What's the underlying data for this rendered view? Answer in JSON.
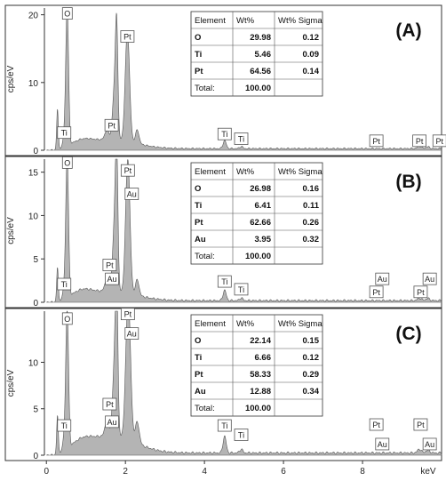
{
  "chart_data": {
    "type": "area",
    "x_unit": "keV",
    "ylabel": "cps/eV",
    "x_ticks": [
      "0",
      "2",
      "4",
      "6",
      "8"
    ],
    "xlim": [
      -0.05,
      10.0
    ],
    "fill_color": "#b4b4b4",
    "line_color": "#555555",
    "table_headers": [
      "Element",
      "Wt%",
      "Wt% Sigma"
    ],
    "total_label": "Total:",
    "panels": [
      {
        "label": "(A)",
        "ylim": [
          0,
          21
        ],
        "y_ticks": [
          0,
          10,
          20
        ],
        "peaks": [
          {
            "x": 0.28,
            "y": 5.8,
            "w": 0.02
          },
          {
            "x": 0.45,
            "y": 1.5,
            "w": 0.03
          },
          {
            "x": 0.525,
            "y": 20.8,
            "w": 0.035
          },
          {
            "x": 1.53,
            "y": 1.4,
            "w": 0.05
          },
          {
            "x": 1.73,
            "y": 8.2,
            "w": 0.05
          },
          {
            "x": 1.78,
            "y": 13.5,
            "w": 0.03
          },
          {
            "x": 2.05,
            "y": 16.3,
            "w": 0.055
          },
          {
            "x": 2.3,
            "y": 2.0,
            "w": 0.045
          },
          {
            "x": 4.51,
            "y": 1.2,
            "w": 0.04
          },
          {
            "x": 4.93,
            "y": 0.3,
            "w": 0.04
          },
          {
            "x": 9.44,
            "y": 0.4,
            "w": 0.05
          },
          {
            "x": 9.65,
            "y": 0.25,
            "w": 0.05
          }
        ],
        "background": {
          "mid": 1.6,
          "tail": 0.25
        },
        "peak_labels": [
          {
            "text": "O",
            "x": 0.53,
            "y": 20.2
          },
          {
            "text": "Ti",
            "x": 0.45,
            "y": 2.6
          },
          {
            "text": "Pt",
            "x": 1.65,
            "y": 3.7
          },
          {
            "text": "Pt",
            "x": 2.05,
            "y": 16.8
          },
          {
            "text": "Ti",
            "x": 4.51,
            "y": 2.4
          },
          {
            "text": "Ti",
            "x": 4.93,
            "y": 1.7
          },
          {
            "text": "Pt",
            "x": 8.35,
            "y": 1.4
          },
          {
            "text": "Pt",
            "x": 9.44,
            "y": 1.4
          },
          {
            "text": "Pt",
            "x": 9.95,
            "y": 1.4
          }
        ],
        "composition": [
          {
            "element": "O",
            "wt": "29.98",
            "sigma": "0.12"
          },
          {
            "element": "Ti",
            "wt": "5.46",
            "sigma": "0.09"
          },
          {
            "element": "Pt",
            "wt": "64.56",
            "sigma": "0.14"
          }
        ],
        "total": "100.00"
      },
      {
        "label": "(B)",
        "ylim": [
          0,
          16.5
        ],
        "y_ticks": [
          0,
          5,
          10,
          15
        ],
        "peaks": [
          {
            "x": 0.28,
            "y": 3.8,
            "w": 0.02
          },
          {
            "x": 0.45,
            "y": 1.2,
            "w": 0.03
          },
          {
            "x": 0.525,
            "y": 16.3,
            "w": 0.035
          },
          {
            "x": 1.53,
            "y": 1.4,
            "w": 0.05
          },
          {
            "x": 1.73,
            "y": 8.3,
            "w": 0.05
          },
          {
            "x": 1.78,
            "y": 13.2,
            "w": 0.03
          },
          {
            "x": 2.06,
            "y": 15.5,
            "w": 0.055
          },
          {
            "x": 2.3,
            "y": 1.8,
            "w": 0.045
          },
          {
            "x": 4.51,
            "y": 1.2,
            "w": 0.04
          },
          {
            "x": 4.93,
            "y": 0.3,
            "w": 0.04
          },
          {
            "x": 9.44,
            "y": 0.3,
            "w": 0.05
          },
          {
            "x": 9.65,
            "y": 0.25,
            "w": 0.05
          }
        ],
        "background": {
          "mid": 1.3,
          "tail": 0.2
        },
        "peak_labels": [
          {
            "text": "O",
            "x": 0.53,
            "y": 16.1
          },
          {
            "text": "Ti",
            "x": 0.45,
            "y": 2.1
          },
          {
            "text": "Pt",
            "x": 1.6,
            "y": 4.3
          },
          {
            "text": "Au",
            "x": 1.66,
            "y": 2.7
          },
          {
            "text": "Pt",
            "x": 2.06,
            "y": 15.2
          },
          {
            "text": "Au",
            "x": 2.16,
            "y": 12.5
          },
          {
            "text": "Ti",
            "x": 4.51,
            "y": 2.4
          },
          {
            "text": "Ti",
            "x": 4.93,
            "y": 1.5
          },
          {
            "text": "Pt",
            "x": 8.35,
            "y": 1.2
          },
          {
            "text": "Au",
            "x": 8.5,
            "y": 2.7
          },
          {
            "text": "Pt",
            "x": 9.47,
            "y": 1.2
          },
          {
            "text": "Au",
            "x": 9.7,
            "y": 2.7
          }
        ],
        "composition": [
          {
            "element": "O",
            "wt": "26.98",
            "sigma": "0.16"
          },
          {
            "element": "Ti",
            "wt": "6.41",
            "sigma": "0.11"
          },
          {
            "element": "Pt",
            "wt": "62.66",
            "sigma": "0.26"
          },
          {
            "element": "Au",
            "wt": "3.95",
            "sigma": "0.32"
          }
        ],
        "total": "100.00"
      },
      {
        "label": "(C)",
        "ylim": [
          0,
          15.5
        ],
        "y_ticks": [
          0,
          5,
          10
        ],
        "peaks": [
          {
            "x": 0.28,
            "y": 4.0,
            "w": 0.02
          },
          {
            "x": 0.45,
            "y": 1.3,
            "w": 0.03
          },
          {
            "x": 0.525,
            "y": 15.2,
            "w": 0.035
          },
          {
            "x": 1.53,
            "y": 1.6,
            "w": 0.05
          },
          {
            "x": 1.73,
            "y": 8.4,
            "w": 0.05
          },
          {
            "x": 1.78,
            "y": 13.2,
            "w": 0.03
          },
          {
            "x": 2.07,
            "y": 15.4,
            "w": 0.06
          },
          {
            "x": 2.3,
            "y": 2.3,
            "w": 0.05
          },
          {
            "x": 4.51,
            "y": 1.8,
            "w": 0.04
          },
          {
            "x": 4.93,
            "y": 0.4,
            "w": 0.04
          },
          {
            "x": 9.44,
            "y": 0.4,
            "w": 0.05
          },
          {
            "x": 9.65,
            "y": 0.3,
            "w": 0.05
          }
        ],
        "background": {
          "mid": 2.1,
          "tail": 0.25
        },
        "peak_labels": [
          {
            "text": "O",
            "x": 0.53,
            "y": 14.7
          },
          {
            "text": "Ti",
            "x": 0.45,
            "y": 3.2
          },
          {
            "text": "Pt",
            "x": 1.6,
            "y": 5.5
          },
          {
            "text": "Au",
            "x": 1.66,
            "y": 3.6
          },
          {
            "text": "Pt",
            "x": 2.06,
            "y": 15.2
          },
          {
            "text": "Au",
            "x": 2.16,
            "y": 13.1
          },
          {
            "text": "Ti",
            "x": 4.51,
            "y": 3.2
          },
          {
            "text": "Ti",
            "x": 4.93,
            "y": 2.2
          },
          {
            "text": "Pt",
            "x": 8.35,
            "y": 3.3
          },
          {
            "text": "Au",
            "x": 8.5,
            "y": 1.2
          },
          {
            "text": "Pt",
            "x": 9.47,
            "y": 3.3
          },
          {
            "text": "Au",
            "x": 9.7,
            "y": 1.2
          }
        ],
        "composition": [
          {
            "element": "O",
            "wt": "22.14",
            "sigma": "0.15"
          },
          {
            "element": "Ti",
            "wt": "6.66",
            "sigma": "0.12"
          },
          {
            "element": "Pt",
            "wt": "58.33",
            "sigma": "0.29"
          },
          {
            "element": "Au",
            "wt": "12.88",
            "sigma": "0.34"
          }
        ],
        "total": "100.00"
      }
    ]
  }
}
